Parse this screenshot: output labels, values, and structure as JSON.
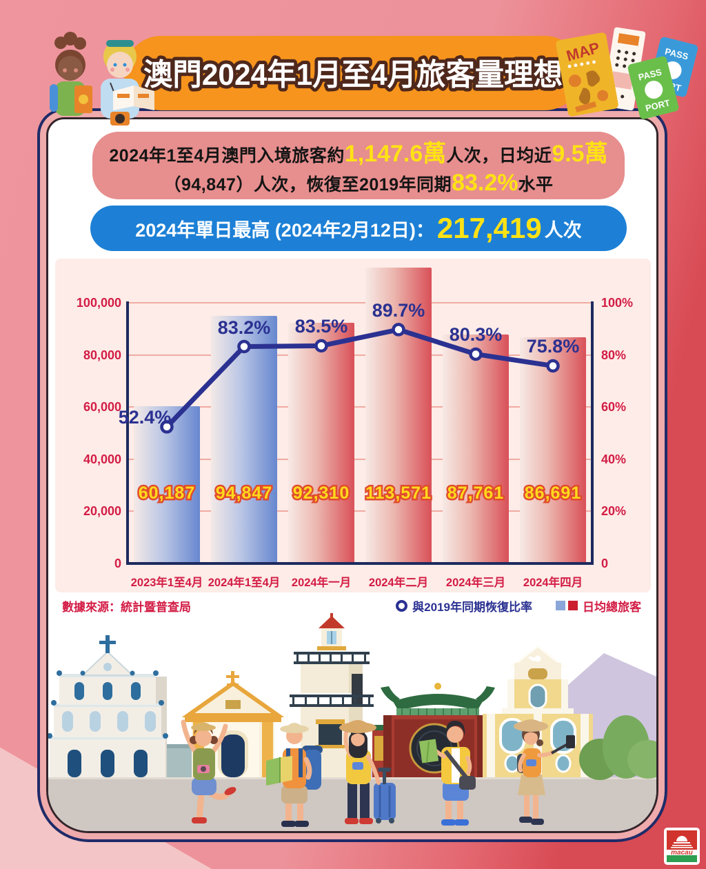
{
  "header": {
    "title": "澳門2024年1月至4月旅客量理想"
  },
  "summary_box": {
    "l1_a": "2024年1至4月澳門入境旅客約",
    "l1_b": "1,147.6萬",
    "l1_c": "人次，日均近",
    "l1_d": "9.5萬",
    "l2_a": "（94,847）人次，恢復至2019年同期",
    "l2_b": "83.2%",
    "l2_c": "水平"
  },
  "highlight_box": {
    "prefix": "2024年單日最高 (2024年2月12日)：",
    "value": "217,419",
    "suffix": "人次"
  },
  "chart_data": {
    "type": "bar+line",
    "categories": [
      "2023年1至4月",
      "2024年1至4月",
      "2024年一月",
      "2024年二月",
      "2024年三月",
      "2024年四月"
    ],
    "bars": {
      "name": "日均總旅客",
      "values": [
        60187,
        94847,
        92310,
        113571,
        87761,
        86691
      ],
      "labels": [
        "60,187",
        "94,847",
        "92,310",
        "113,571",
        "87,761",
        "86,691"
      ],
      "styles": [
        "blue",
        "blue",
        "red",
        "red",
        "red",
        "red"
      ]
    },
    "line": {
      "name": "與2019年同期恢復比率",
      "values": [
        52.4,
        83.2,
        83.5,
        89.7,
        80.3,
        75.8
      ],
      "labels": [
        "52.4%",
        "83.2%",
        "83.5%",
        "89.7%",
        "80.3%",
        "75.8%"
      ]
    },
    "y_left": {
      "max": 100000,
      "ticks": [
        "0",
        "20,000",
        "40,000",
        "60,000",
        "80,000",
        "100,000"
      ]
    },
    "y_right": {
      "max": 100,
      "ticks": [
        "0",
        "20%",
        "40%",
        "60%",
        "80%",
        "100%"
      ]
    },
    "grid": true,
    "legend_position": "bottom-right",
    "source": "數據來源：統計暨普查局",
    "legend": {
      "line_label": "與2019年同期恢復比率",
      "bars_label": "日均總旅客"
    }
  },
  "decor": {
    "map_label": "MAP",
    "passport_top": "PASS",
    "passport_bottom": "PORT",
    "logo_text": "macau"
  },
  "colors": {
    "page_pink": "#ee959d",
    "page_red": "#d84a54",
    "page_light_wedge": "#f4c5c6",
    "banner_orange": "#f6941d",
    "banner_text_outline": "#4f281c",
    "summary_bg": "#e78e8e",
    "highlight_blue": "#1d80d6",
    "accent_yellow": "#ffe215",
    "chart_panel": "#fdece7",
    "gridline": "#f0aba2",
    "axis_navy": "#1d2a5e",
    "tick_red": "#d31c45",
    "line_navy": "#2b3191",
    "bar_blue": "#6787cf",
    "bar_red": "#d95058",
    "bar_label_yellow": "#ffd91c",
    "bar_label_outline": "#e04b2e",
    "legend_blue": "#8ba6d9",
    "legend_red": "#cb2030",
    "logo_red": "#d0342c",
    "logo_green": "#2e9e4f"
  }
}
